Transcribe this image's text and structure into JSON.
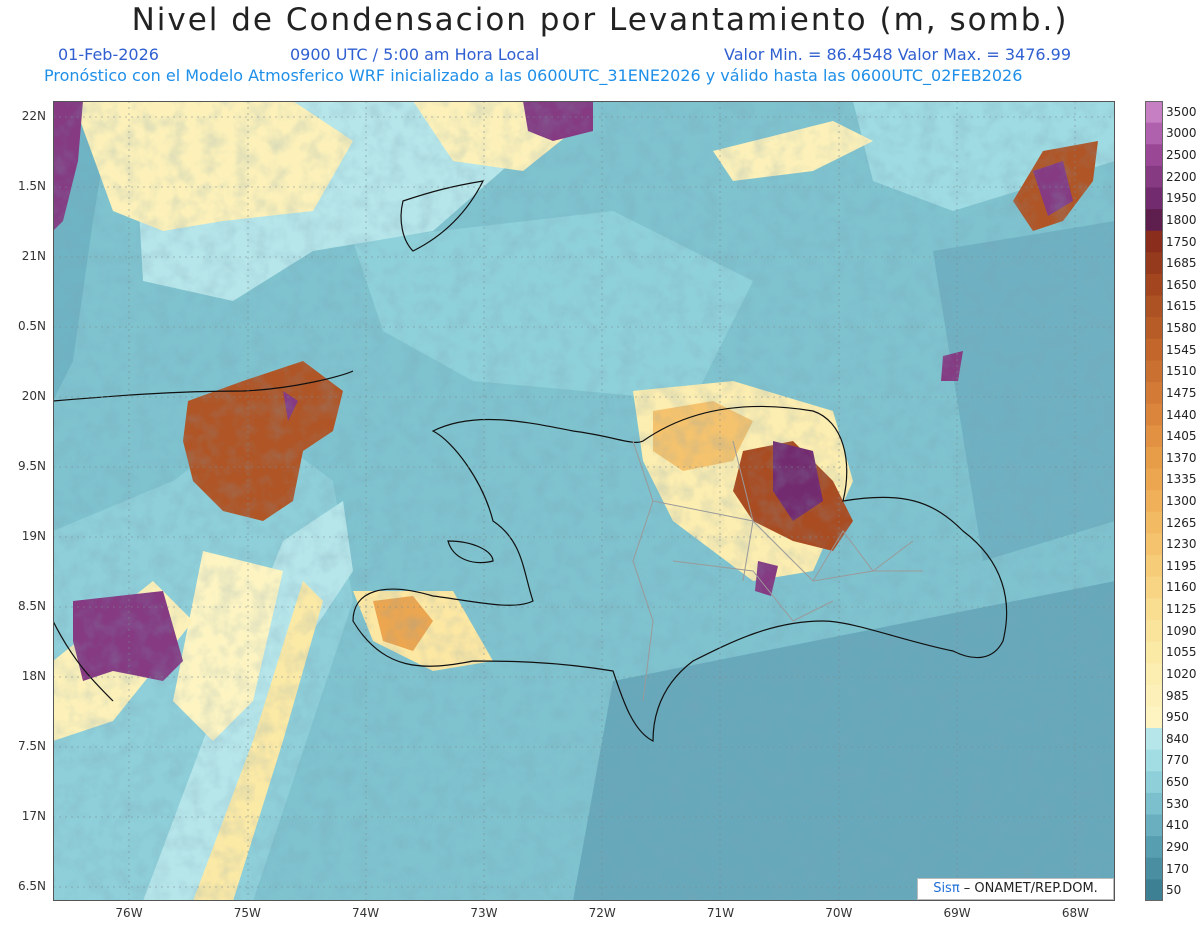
{
  "header": {
    "title": "Nivel de Condensacion por Levantamiento (m, somb.)",
    "date": "01-Feb-2026",
    "time": "0900 UTC / 5:00 am Hora Local",
    "minmax": "Valor Min. = 86.4548   Valor Max. = 3476.99",
    "model_line": "Pronóstico con el Modelo Atmosferico WRF inicializado a las 0600UTC_31ENE2026 y válido hasta las  0600UTC_02FEB2026"
  },
  "axes": {
    "lat_labels": [
      "22N",
      "1.5N",
      "21N",
      "0.5N",
      "20N",
      "9.5N",
      "19N",
      "8.5N",
      "18N",
      "7.5N",
      "17N",
      "6.5N"
    ],
    "lon_labels": [
      "76W",
      "75W",
      "74W",
      "73W",
      "72W",
      "71W",
      "70W",
      "69W",
      "68W"
    ]
  },
  "colorbar": {
    "levels": [
      "3500",
      "3000",
      "2500",
      "2200",
      "1950",
      "1800",
      "1750",
      "1685",
      "1650",
      "1615",
      "1580",
      "1545",
      "1510",
      "1475",
      "1440",
      "1405",
      "1370",
      "1335",
      "1300",
      "1265",
      "1230",
      "1195",
      "1160",
      "1125",
      "1090",
      "1055",
      "1020",
      "985",
      "950",
      "840",
      "770",
      "650",
      "530",
      "410",
      "290",
      "170",
      "50"
    ],
    "colors": [
      "#c77fc4",
      "#b061ad",
      "#9a4896",
      "#853a82",
      "#732b6f",
      "#5e1f4e",
      "#8a2d1d",
      "#963a1d",
      "#a3461f",
      "#ad5222",
      "#b85c27",
      "#c2662c",
      "#ca7031",
      "#d27a36",
      "#da853b",
      "#e19141",
      "#e79c48",
      "#eca650",
      "#f0b05a",
      "#f3ba64",
      "#f5c36e",
      "#f7cc79",
      "#f8d585",
      "#f9dd91",
      "#fae49c",
      "#fbe9a6",
      "#fcedb0",
      "#fdf1b9",
      "#fdf4c2",
      "#b6e6ea",
      "#a2dde4",
      "#8ecfd9",
      "#7cc0cd",
      "#69afc0",
      "#589eb1",
      "#4a8ea2",
      "#3d7f93"
    ]
  },
  "credit": {
    "brand": "Sisπ",
    "text": " – ONAMET/REP.DOM."
  }
}
